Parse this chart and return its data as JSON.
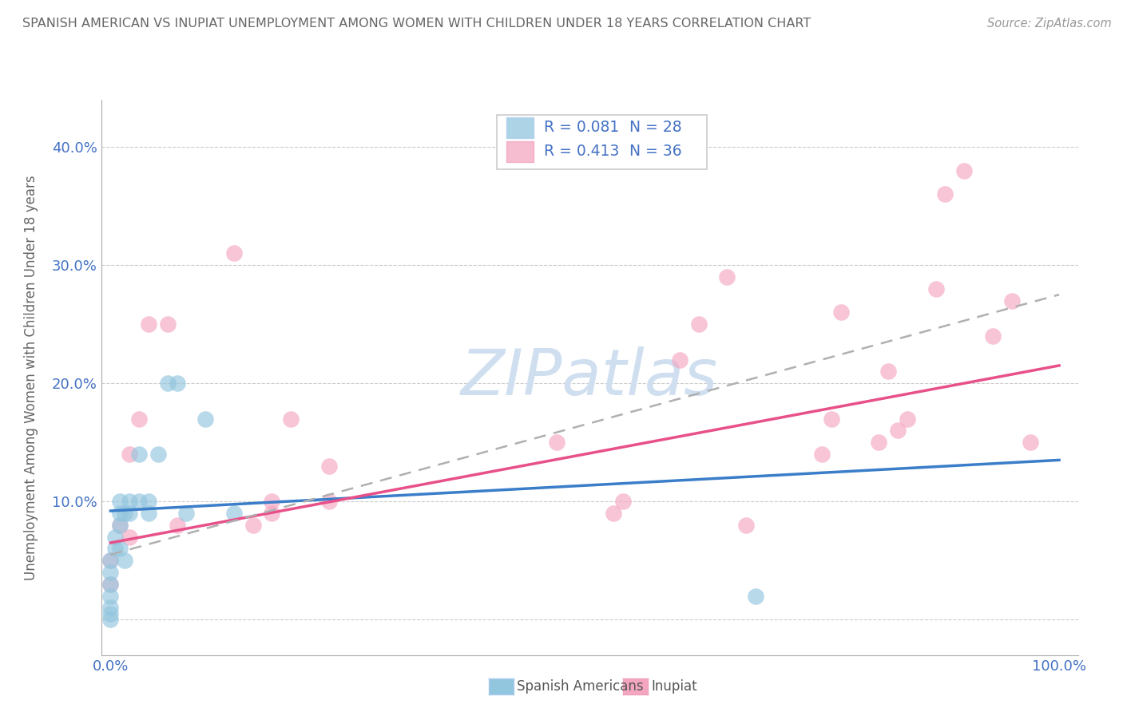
{
  "title": "SPANISH AMERICAN VS INUPIAT UNEMPLOYMENT AMONG WOMEN WITH CHILDREN UNDER 18 YEARS CORRELATION CHART",
  "source": "Source: ZipAtlas.com",
  "ylabel": "Unemployment Among Women with Children Under 18 years",
  "xlim": [
    -0.01,
    1.02
  ],
  "ylim": [
    -0.03,
    0.44
  ],
  "x_ticks": [
    0.0,
    0.1,
    0.2,
    0.3,
    0.4,
    0.5,
    0.6,
    0.7,
    0.8,
    0.9,
    1.0
  ],
  "x_tick_labels": [
    "0.0%",
    "",
    "",
    "",
    "",
    "",
    "",
    "",
    "",
    "",
    "100.0%"
  ],
  "y_ticks": [
    0.0,
    0.1,
    0.2,
    0.3,
    0.4
  ],
  "y_tick_labels": [
    "",
    "10.0%",
    "20.0%",
    "30.0%",
    "40.0%"
  ],
  "legend_blue_label": "Spanish Americans",
  "legend_pink_label": "Inupiat",
  "r_blue": "R = 0.081",
  "n_blue": "N = 28",
  "r_pink": "R = 0.413",
  "n_pink": "N = 36",
  "blue_scatter_color": "#92c5de",
  "pink_scatter_color": "#f4a6c0",
  "blue_line_color": "#3a7dc9",
  "pink_line_color": "#e8508a",
  "dashed_line_color": "#b0b0b0",
  "background_color": "#ffffff",
  "grid_color": "#cccccc",
  "title_color": "#666666",
  "source_color": "#999999",
  "legend_text_color": "#4472c4",
  "tick_color": "#4472c4",
  "watermark": "ZIPatlas",
  "watermark_color": "#d0dff0",
  "spanish_x": [
    0.0,
    0.0,
    0.0,
    0.0,
    0.0,
    0.0,
    0.0,
    0.005,
    0.005,
    0.01,
    0.01,
    0.01,
    0.01,
    0.015,
    0.015,
    0.02,
    0.02,
    0.03,
    0.03,
    0.04,
    0.04,
    0.05,
    0.06,
    0.07,
    0.08,
    0.1,
    0.13,
    0.68
  ],
  "spanish_y": [
    0.0,
    0.005,
    0.01,
    0.02,
    0.03,
    0.04,
    0.05,
    0.06,
    0.07,
    0.08,
    0.09,
    0.1,
    0.06,
    0.05,
    0.09,
    0.1,
    0.09,
    0.14,
    0.1,
    0.09,
    0.1,
    0.14,
    0.2,
    0.2,
    0.09,
    0.17,
    0.09,
    0.02
  ],
  "inupiat_x": [
    0.0,
    0.0,
    0.01,
    0.02,
    0.02,
    0.03,
    0.04,
    0.06,
    0.07,
    0.13,
    0.15,
    0.17,
    0.17,
    0.19,
    0.23,
    0.23,
    0.47,
    0.53,
    0.54,
    0.6,
    0.62,
    0.65,
    0.67,
    0.75,
    0.76,
    0.77,
    0.81,
    0.82,
    0.83,
    0.84,
    0.87,
    0.88,
    0.9,
    0.93,
    0.95,
    0.97
  ],
  "inupiat_y": [
    0.05,
    0.03,
    0.08,
    0.07,
    0.14,
    0.17,
    0.25,
    0.25,
    0.08,
    0.31,
    0.08,
    0.09,
    0.1,
    0.17,
    0.1,
    0.13,
    0.15,
    0.09,
    0.1,
    0.22,
    0.25,
    0.29,
    0.08,
    0.14,
    0.17,
    0.26,
    0.15,
    0.21,
    0.16,
    0.17,
    0.28,
    0.36,
    0.38,
    0.24,
    0.27,
    0.15
  ],
  "blue_trend": [
    0.0,
    1.0,
    0.092,
    0.135
  ],
  "pink_trend": [
    0.0,
    1.0,
    0.065,
    0.215
  ],
  "dashed_trend": [
    0.0,
    1.0,
    0.055,
    0.275
  ]
}
